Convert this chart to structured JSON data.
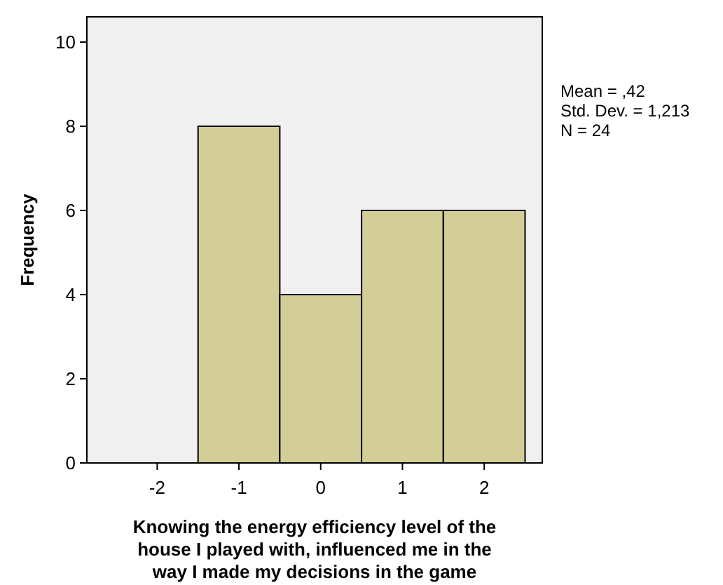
{
  "chart_data": {
    "type": "histogram",
    "xlabel": "Knowing the energy efficiency level of the house I played with, influenced me in the way I made my decisions in the game",
    "ylabel": "Frequency",
    "bins": [
      -2.5,
      -1.5,
      -0.5,
      0.5,
      1.5,
      2.5
    ],
    "values": [
      0,
      8,
      4,
      6,
      6
    ],
    "color": "#d3ce97",
    "xlim": [
      -2.86,
      2.71
    ],
    "xticks": [
      -2,
      -1,
      0,
      1,
      2
    ],
    "ylim": [
      0,
      10.6
    ],
    "yticks": [
      0,
      2,
      4,
      6,
      8,
      10
    ],
    "annotations": [
      "Mean = ,42",
      "Std. Dev. = 1,213",
      "N = 24"
    ],
    "grid": false
  }
}
